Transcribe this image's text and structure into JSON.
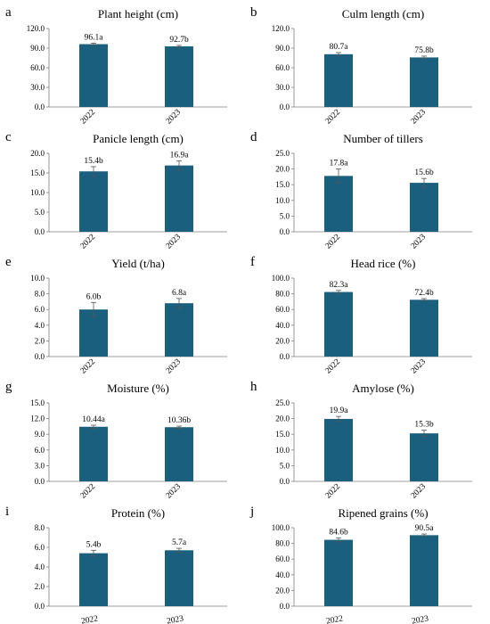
{
  "colors": {
    "bar": "#1b5f7e",
    "axis": "#7f7f7f",
    "error": "#555555"
  },
  "chart_data": [
    {
      "letter": "a",
      "type": "bar",
      "title": "Plant height (cm)",
      "categories": [
        "2022",
        "2023"
      ],
      "values": [
        96.1,
        92.7
      ],
      "errors": [
        1.5,
        1.5
      ],
      "labels": [
        "96.1a",
        "92.7b"
      ],
      "ylim": [
        0,
        120
      ],
      "yticks": [
        "0.0",
        "30.0",
        "60.0",
        "90.0",
        "120.0"
      ],
      "rotated_x": true
    },
    {
      "letter": "b",
      "type": "bar",
      "title": "Culm length (cm)",
      "categories": [
        "2022",
        "2023"
      ],
      "values": [
        80.7,
        75.8
      ],
      "errors": [
        2.5,
        2.0
      ],
      "labels": [
        "80.7a",
        "75.8b"
      ],
      "ylim": [
        0,
        120
      ],
      "yticks": [
        "0.0",
        "30.0",
        "60.0",
        "90.0",
        "120.0"
      ],
      "rotated_x": true
    },
    {
      "letter": "c",
      "type": "bar",
      "title": "Panicle length (cm)",
      "categories": [
        "2022",
        "2023"
      ],
      "values": [
        15.4,
        16.9
      ],
      "errors": [
        1.2,
        1.2
      ],
      "labels": [
        "15.4b",
        "16.9a"
      ],
      "ylim": [
        0,
        20
      ],
      "yticks": [
        "0.0",
        "5.0",
        "10.0",
        "15.0",
        "20.0"
      ],
      "rotated_x": true
    },
    {
      "letter": "d",
      "type": "bar",
      "title": "Number of tillers",
      "categories": [
        "2022",
        "2023"
      ],
      "values": [
        17.8,
        15.6
      ],
      "errors": [
        2.2,
        1.4
      ],
      "labels": [
        "17.8a",
        "15.6b"
      ],
      "ylim": [
        0,
        25
      ],
      "yticks": [
        "0.0",
        "5.0",
        "10.0",
        "15.0",
        "20.0",
        "25.0"
      ],
      "rotated_x": true
    },
    {
      "letter": "e",
      "type": "bar",
      "title": "Yield (t/ha)",
      "categories": [
        "2022",
        "2023"
      ],
      "values": [
        6.0,
        6.8
      ],
      "errors": [
        0.9,
        0.6
      ],
      "labels": [
        "6.0b",
        "6.8a"
      ],
      "ylim": [
        0,
        10
      ],
      "yticks": [
        "0.0",
        "2.0",
        "4.0",
        "6.0",
        "8.0",
        "10.0"
      ],
      "rotated_x": true
    },
    {
      "letter": "f",
      "type": "bar",
      "title": "Head rice (%)",
      "categories": [
        "2022",
        "2023"
      ],
      "values": [
        82.3,
        72.4
      ],
      "errors": [
        2.0,
        1.5
      ],
      "labels": [
        "82.3a",
        "72.4b"
      ],
      "ylim": [
        0,
        100
      ],
      "yticks": [
        "0.0",
        "20.0",
        "40.0",
        "60.0",
        "80.0",
        "100.0"
      ],
      "rotated_x": true
    },
    {
      "letter": "g",
      "type": "bar",
      "title": "Moisture (%)",
      "categories": [
        "2022",
        "2023"
      ],
      "values": [
        10.44,
        10.36
      ],
      "errors": [
        0.3,
        0.2
      ],
      "labels": [
        "10.44a",
        "10.36b"
      ],
      "ylim": [
        0,
        15
      ],
      "yticks": [
        "0.0",
        "3.0",
        "6.0",
        "9.0",
        "12.0",
        "15.0"
      ],
      "rotated_x": true
    },
    {
      "letter": "h",
      "type": "bar",
      "title": "Amylose (%)",
      "categories": [
        "2022",
        "2023"
      ],
      "values": [
        19.9,
        15.3
      ],
      "errors": [
        0.8,
        1.0
      ],
      "labels": [
        "19.9a",
        "15.3b"
      ],
      "ylim": [
        0,
        25
      ],
      "yticks": [
        "0.0",
        "5.0",
        "10.0",
        "15.0",
        "20.0",
        "25.0"
      ],
      "rotated_x": true
    },
    {
      "letter": "i",
      "type": "bar",
      "title": "Protein (%)",
      "categories": [
        "2022",
        "2023"
      ],
      "values": [
        5.4,
        5.7
      ],
      "errors": [
        0.3,
        0.2
      ],
      "labels": [
        "5.4b",
        "5.7a"
      ],
      "ylim": [
        0,
        8
      ],
      "yticks": [
        "0.0",
        "2.0",
        "4.0",
        "6.0",
        "8.0"
      ],
      "rotated_x": false
    },
    {
      "letter": "j",
      "type": "bar",
      "title": "Ripened grains (%)",
      "categories": [
        "2022",
        "2023"
      ],
      "values": [
        84.6,
        90.5
      ],
      "errors": [
        2.5,
        1.5
      ],
      "labels": [
        "84.6b",
        "90.5a"
      ],
      "ylim": [
        0,
        100
      ],
      "yticks": [
        "0.0",
        "20.0",
        "40.0",
        "60.0",
        "80.0",
        "100.0"
      ],
      "rotated_x": false
    }
  ]
}
